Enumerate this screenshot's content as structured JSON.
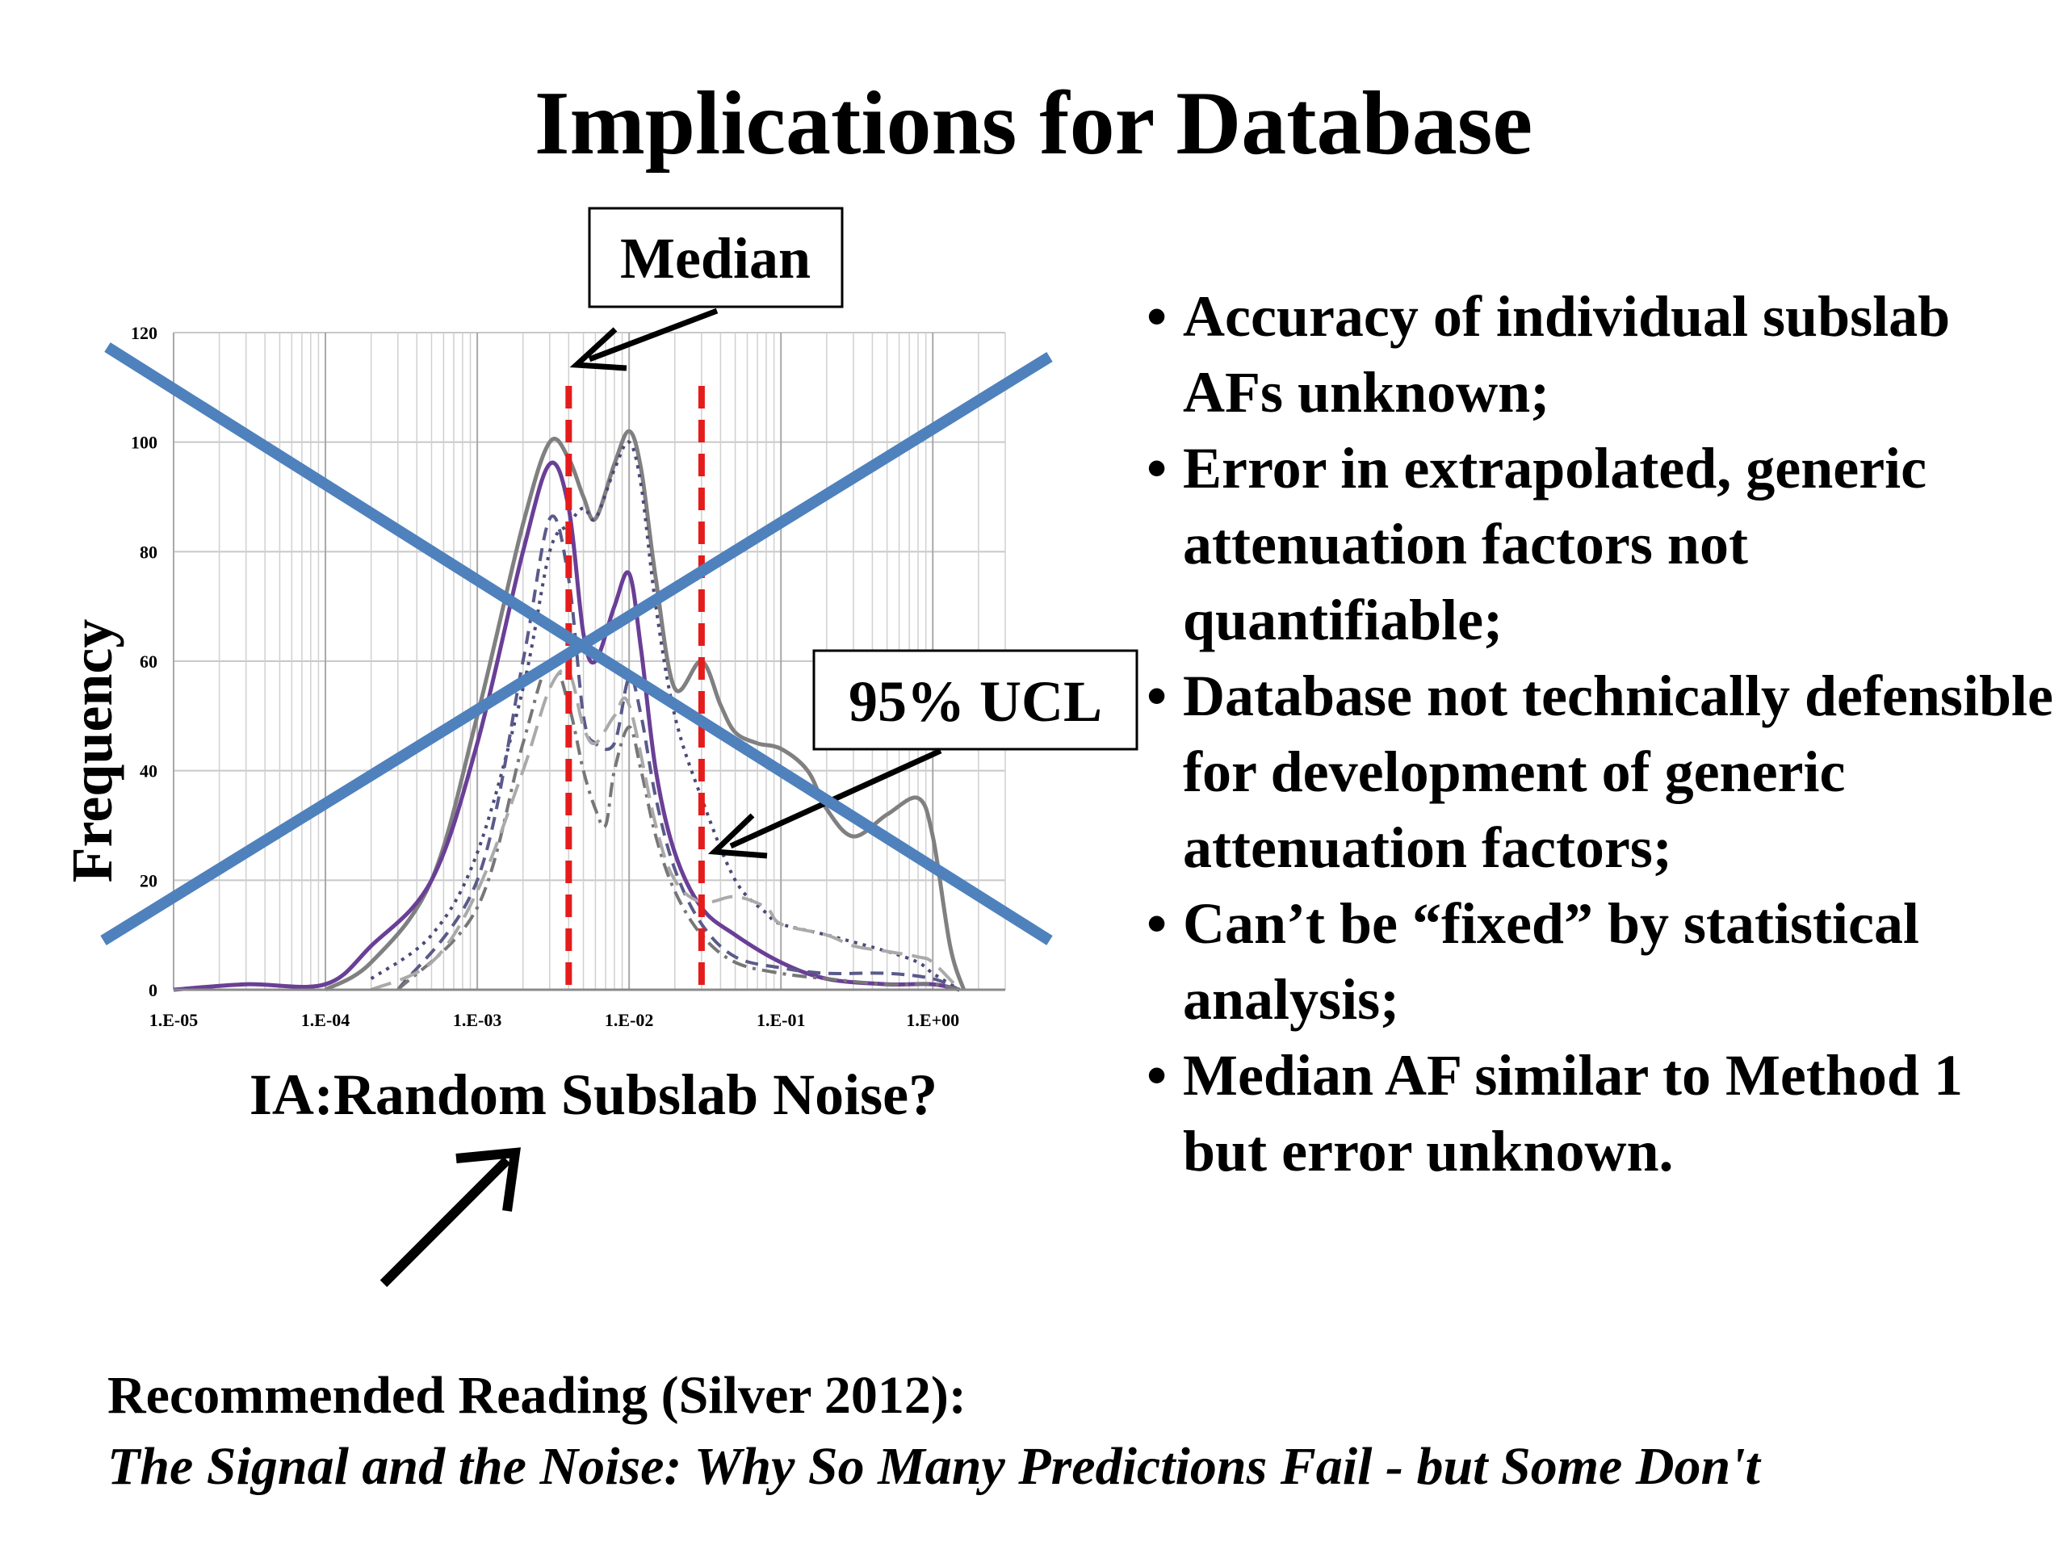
{
  "slide": {
    "title": "Implications for Database",
    "bullets": [
      "Accuracy of individual subslab AFs unknown;",
      "Error in extrapolated, generic attenuation factors not quantifiable;",
      "Database not technically defensible for development of generic attenuation factors;",
      "Can’t be “fixed” by statistical analysis;",
      "Median AF similar to Method 1 but error unknown."
    ],
    "recommended_heading": "Recommended Reading (Silver 2012):",
    "recommended_book": "The Signal and the Noise: Why So Many Predictions Fail - but Some Don't"
  },
  "chart_data": {
    "type": "line",
    "x_scale": "log",
    "xlim": [
      1e-05,
      3
    ],
    "ylim": [
      0,
      120
    ],
    "x_ticks": [
      1e-05,
      0.0001,
      0.001,
      0.01,
      0.1,
      1
    ],
    "x_tick_labels": [
      "1.E-05",
      "1.E-04",
      "1.E-03",
      "1.E-02",
      "1.E-01",
      "1.E+00"
    ],
    "y_ticks": [
      0,
      20,
      40,
      60,
      80,
      100,
      120
    ],
    "y_tick_labels": [
      "0",
      "20",
      "40",
      "60",
      "80",
      "100",
      "120"
    ],
    "ylabel": "Frequency",
    "xlabel": "IA:Random Subslab Noise?",
    "grid": true,
    "series": [
      {
        "style": "solid",
        "color": "#808080",
        "x": [
          0.0001,
          0.0002,
          0.0005,
          0.001,
          0.002,
          0.003,
          0.004,
          0.005,
          0.006,
          0.008,
          0.01,
          0.012,
          0.015,
          0.02,
          0.03,
          0.04,
          0.05,
          0.07,
          0.1,
          0.15,
          0.2,
          0.3,
          0.5,
          0.8,
          1.0,
          1.3,
          1.6
        ],
        "y": [
          0,
          5,
          20,
          50,
          85,
          100,
          97,
          90,
          86,
          96,
          102,
          95,
          75,
          55,
          60,
          52,
          47,
          45,
          44,
          40,
          33,
          28,
          32,
          35,
          28,
          8,
          0
        ]
      },
      {
        "style": "dotted",
        "color": "#4a4a7a",
        "x": [
          0.0002,
          0.0005,
          0.001,
          0.002,
          0.003,
          0.004,
          0.005,
          0.006,
          0.008,
          0.01,
          0.012,
          0.015,
          0.02,
          0.03,
          0.05,
          0.08,
          0.1,
          0.2,
          0.5,
          0.8,
          1.0,
          1.5
        ],
        "y": [
          2,
          10,
          25,
          55,
          80,
          85,
          88,
          86,
          95,
          100,
          92,
          70,
          50,
          35,
          20,
          14,
          12,
          10,
          7,
          5,
          3,
          0
        ]
      },
      {
        "style": "solid",
        "color": "#6a3f96",
        "x": [
          1e-05,
          3e-05,
          0.0001,
          0.0002,
          0.0005,
          0.001,
          0.002,
          0.003,
          0.004,
          0.005,
          0.006,
          0.008,
          0.01,
          0.012,
          0.015,
          0.02,
          0.03,
          0.05,
          0.1,
          0.2,
          0.5,
          1.0,
          1.5
        ],
        "y": [
          0,
          1,
          1,
          8,
          20,
          45,
          80,
          96,
          88,
          65,
          60,
          70,
          76,
          62,
          40,
          25,
          15,
          10,
          5,
          2,
          1,
          1,
          0
        ]
      },
      {
        "style": "dashed",
        "color": "#5a5a8a",
        "x": [
          0.0003,
          0.001,
          0.002,
          0.003,
          0.004,
          0.005,
          0.006,
          0.008,
          0.01,
          0.012,
          0.015,
          0.02,
          0.03,
          0.05,
          0.1,
          0.2,
          0.5,
          1.0,
          1.5
        ],
        "y": [
          0,
          20,
          60,
          86,
          75,
          50,
          45,
          45,
          57,
          50,
          35,
          22,
          12,
          6,
          4,
          3,
          3,
          2,
          0
        ]
      },
      {
        "style": "dashdot",
        "color": "#777777",
        "x": [
          0.0003,
          0.001,
          0.002,
          0.003,
          0.004,
          0.005,
          0.006,
          0.007,
          0.008,
          0.01,
          0.012,
          0.015,
          0.02,
          0.03,
          0.05,
          0.1,
          0.2,
          0.5,
          1.0,
          1.5
        ],
        "y": [
          0,
          15,
          45,
          60,
          52,
          40,
          33,
          30,
          40,
          48,
          40,
          28,
          18,
          10,
          5,
          3,
          2,
          1,
          1,
          0
        ]
      },
      {
        "style": "longdash",
        "color": "#aaaaaa",
        "x": [
          0.0002,
          0.0005,
          0.001,
          0.002,
          0.003,
          0.004,
          0.005,
          0.006,
          0.008,
          0.01,
          0.015,
          0.02,
          0.03,
          0.05,
          0.08,
          0.1,
          0.2,
          0.3,
          0.5,
          0.8,
          1.0,
          1.5
        ],
        "y": [
          0,
          5,
          18,
          40,
          55,
          58,
          48,
          45,
          50,
          52,
          30,
          20,
          16,
          17,
          15,
          12,
          10,
          8,
          7,
          6,
          5,
          0
        ]
      }
    ],
    "reference_lines": [
      {
        "x": 0.004,
        "style": "dashed",
        "color": "#e51c1c",
        "label": "Median"
      },
      {
        "x": 0.03,
        "style": "dashed",
        "color": "#e51c1c",
        "label": "95% UCL"
      }
    ],
    "cross_color": "#4f81bd"
  }
}
